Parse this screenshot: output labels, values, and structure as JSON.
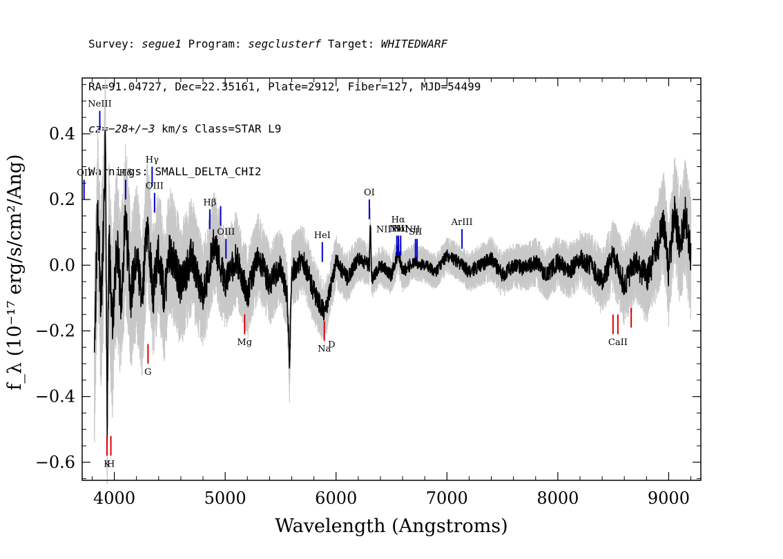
{
  "header": {
    "survey_label": "Survey: ",
    "survey": "segue1",
    "program_label": " Program: ",
    "program": "segclusterf",
    "target_label": " Target: ",
    "target": "WHITEDWARF",
    "line2": "RA=91.04727, Dec=22.35161, Plate=2912, Fiber=127, MJD=54499",
    "cz_label": "cz",
    "cz_value": "=−28+/−3",
    "cz_rest": " km/s Class=STAR L9",
    "warnings": "Warnings: SMALL_DELTA_CHI2"
  },
  "chart_data": {
    "type": "line",
    "xlabel": "Wavelength (Angstroms)",
    "ylabel": "f_λ (10⁻¹⁷ erg/s/cm²/Ang)",
    "xlim": [
      3710,
      9290
    ],
    "ylim": [
      -0.655,
      0.57
    ],
    "x_ticks": [
      4000,
      5000,
      6000,
      7000,
      8000,
      9000
    ],
    "y_ticks": [
      -0.6,
      -0.4,
      -0.2,
      0.0,
      0.2,
      0.4
    ],
    "x_tick_labels": [
      "4000",
      "5000",
      "6000",
      "7000",
      "8000",
      "9000"
    ],
    "y_tick_labels": [
      "−0.6",
      "−0.4",
      "−0.2",
      "0.0",
      "0.2",
      "0.4"
    ],
    "grid": false,
    "legend": "none",
    "series": [
      {
        "role": "flux",
        "color": "#000000",
        "x": [
          3820,
          3850,
          3880,
          3900,
          3920,
          3935,
          3950,
          3980,
          4020,
          4060,
          4100,
          4150,
          4200,
          4250,
          4300,
          4350,
          4400,
          4450,
          4500,
          4600,
          4700,
          4800,
          4900,
          5000,
          5100,
          5200,
          5300,
          5400,
          5500,
          5560,
          5580,
          5600,
          5700,
          5800,
          5900,
          6000,
          6100,
          6200,
          6300,
          6310,
          6320,
          6400,
          6500,
          6560,
          6600,
          6700,
          6800,
          6900,
          7000,
          7100,
          7200,
          7300,
          7400,
          7500,
          7600,
          7700,
          7800,
          7900,
          8000,
          8100,
          8200,
          8300,
          8400,
          8500,
          8600,
          8700,
          8800,
          8900,
          8950,
          9000,
          9050,
          9100,
          9150,
          9200
        ],
        "y": [
          -0.29,
          0.18,
          -0.1,
          0.05,
          0.38,
          -0.52,
          0.1,
          -0.2,
          0.06,
          -0.1,
          0.13,
          -0.08,
          0.02,
          -0.12,
          0.14,
          -0.09,
          0.04,
          -0.1,
          0.05,
          -0.06,
          0.03,
          -0.1,
          0.07,
          -0.05,
          0.02,
          -0.09,
          0.03,
          -0.06,
          0.0,
          -0.1,
          -0.31,
          -0.02,
          0.02,
          -0.08,
          -0.15,
          0.01,
          -0.04,
          0.02,
          0.0,
          0.13,
          -0.04,
          0.0,
          -0.03,
          0.04,
          -0.02,
          0.01,
          0.0,
          -0.02,
          0.03,
          0.01,
          -0.02,
          0.0,
          0.02,
          -0.03,
          0.0,
          -0.01,
          0.01,
          -0.03,
          0.01,
          -0.02,
          0.02,
          0.0,
          -0.05,
          0.03,
          -0.06,
          0.01,
          -0.04,
          0.05,
          0.14,
          -0.02,
          0.17,
          0.06,
          0.15,
          0.02
        ]
      },
      {
        "role": "error",
        "color": "#c8c8c8",
        "x": [
          3820,
          3900,
          4000,
          4200,
          4400,
          4600,
          4800,
          5000,
          5200,
          5400,
          5600,
          5800,
          6000,
          6200,
          6400,
          6600,
          6800,
          7000,
          7200,
          7400,
          7600,
          7800,
          8000,
          8200,
          8400,
          8600,
          8800,
          9000,
          9200
        ],
        "y": [
          0.2,
          0.22,
          0.2,
          0.17,
          0.15,
          0.14,
          0.12,
          0.11,
          0.1,
          0.09,
          0.08,
          0.075,
          0.06,
          0.05,
          0.045,
          0.045,
          0.04,
          0.04,
          0.045,
          0.05,
          0.05,
          0.055,
          0.06,
          0.065,
          0.075,
          0.09,
          0.1,
          0.12,
          0.14
        ]
      }
    ],
    "emission_lines": [
      {
        "label": "OII",
        "x": 3727,
        "y1": 0.2,
        "y2": 0.26,
        "color": "#0000cc"
      },
      {
        "label": "NeIII",
        "x": 3869,
        "y1": 0.41,
        "y2": 0.47,
        "color": "#0000cc"
      },
      {
        "label": "Hδ",
        "x": 4102,
        "y1": 0.2,
        "y2": 0.26,
        "color": "#0000cc"
      },
      {
        "label": "Hγ",
        "x": 4341,
        "y1": 0.24,
        "y2": 0.3,
        "color": "#0000cc"
      },
      {
        "label": "OIII",
        "x": 4363,
        "y1": 0.16,
        "y2": 0.22,
        "color": "#0000cc"
      },
      {
        "label": "Hβ",
        "x": 4861,
        "y1": 0.11,
        "y2": 0.17,
        "color": "#0000cc"
      },
      {
        "label": "",
        "x": 4959,
        "y1": 0.12,
        "y2": 0.18,
        "color": "#0000cc"
      },
      {
        "label": "OIII",
        "x": 5007,
        "y1": 0.02,
        "y2": 0.08,
        "color": "#0000cc"
      },
      {
        "label": "HeI",
        "x": 5876,
        "y1": 0.01,
        "y2": 0.07,
        "color": "#0000cc"
      },
      {
        "label": "OI",
        "x": 6300,
        "y1": 0.14,
        "y2": 0.2,
        "color": "#0000cc"
      },
      {
        "label": "NII",
        "x": 6548,
        "y1": 0.03,
        "y2": 0.09,
        "color": "#0000cc"
      },
      {
        "label": "Hα",
        "x": 6563,
        "y1": 0.03,
        "y2": 0.09,
        "color": "#0000cc"
      },
      {
        "label": "NII",
        "x": 6583,
        "y1": 0.03,
        "y2": 0.09,
        "color": "#0000cc"
      },
      {
        "label": "SII",
        "x": 6716,
        "y1": 0.02,
        "y2": 0.08,
        "color": "#0000cc"
      },
      {
        "label": "",
        "x": 6731,
        "y1": 0.02,
        "y2": 0.08,
        "color": "#0000cc"
      },
      {
        "label": "ArIII",
        "x": 7136,
        "y1": 0.05,
        "y2": 0.11,
        "color": "#0000cc"
      }
    ],
    "absorption_lines": [
      {
        "label": "K",
        "x": 3934,
        "y1": -0.58,
        "y2": -0.52,
        "color": "#dd0000"
      },
      {
        "label": "H",
        "x": 3969,
        "y1": -0.58,
        "y2": -0.52,
        "color": "#dd0000"
      },
      {
        "label": "G",
        "x": 4304,
        "y1": -0.3,
        "y2": -0.24,
        "color": "#dd0000"
      },
      {
        "label": "Mg",
        "x": 5175,
        "y1": -0.21,
        "y2": -0.15,
        "color": "#dd0000"
      },
      {
        "label": "Na",
        "x": 5894,
        "y1": -0.23,
        "y2": -0.17,
        "color": "#dd0000"
      },
      {
        "label": "",
        "x": 8498,
        "y1": -0.21,
        "y2": -0.15,
        "color": "#dd0000"
      },
      {
        "label": "CaII",
        "x": 8542,
        "y1": -0.21,
        "y2": -0.15,
        "color": "#dd0000"
      },
      {
        "label": "",
        "x": 8662,
        "y1": -0.19,
        "y2": -0.13,
        "color": "#dd0000"
      }
    ],
    "extra_labels": [
      {
        "text": "D",
        "x": 5960,
        "y": -0.25
      },
      {
        "text": "NII",
        "x": 6430,
        "y": 0.1
      },
      {
        "text": "Hα",
        "x": 6560,
        "y": 0.13
      },
      {
        "text": "NII",
        "x": 6690,
        "y": 0.1
      }
    ]
  }
}
